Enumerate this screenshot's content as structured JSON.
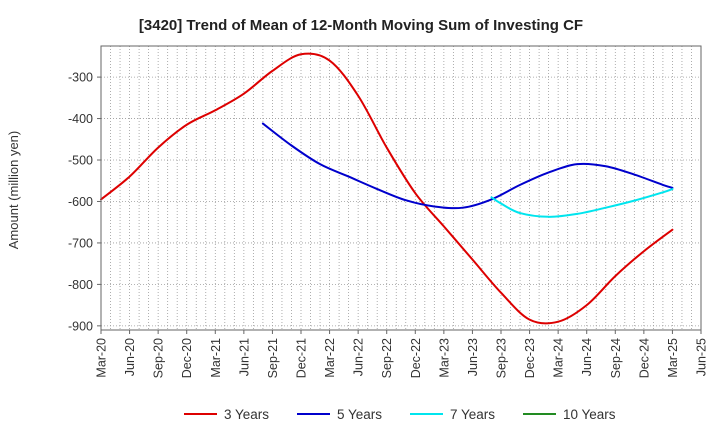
{
  "chart_data": {
    "type": "line",
    "title": "[3420]  Trend of Mean of 12-Month Moving Sum of Investing CF",
    "xlabel": "",
    "ylabel": "Amount (million yen)",
    "ylim": [
      -910,
      -225
    ],
    "yticks": [
      -900,
      -800,
      -700,
      -600,
      -500,
      -400,
      -300
    ],
    "ytick_labels": [
      "-900",
      "-800",
      "-700",
      "-600",
      "-500",
      "-400",
      "-300"
    ],
    "xlim": [
      0,
      63
    ],
    "xtick_positions": [
      0,
      3,
      6,
      9,
      12,
      15,
      18,
      21,
      24,
      27,
      30,
      33,
      36,
      39,
      42,
      45,
      48,
      51,
      54,
      57,
      60,
      63
    ],
    "xtick_labels": [
      "Mar-20",
      "Jun-20",
      "Sep-20",
      "Dec-20",
      "Mar-21",
      "Jun-21",
      "Sep-21",
      "Dec-21",
      "Mar-22",
      "Jun-22",
      "Sep-22",
      "Dec-22",
      "Mar-23",
      "Jun-23",
      "Sep-23",
      "Dec-23",
      "Mar-24",
      "Jun-24",
      "Sep-24",
      "Dec-24",
      "Mar-25",
      "Jun-25"
    ],
    "grid": true,
    "legend_position": "bottom",
    "series": [
      {
        "name": "3 Years",
        "color": "#dd0000",
        "x": [
          0,
          3,
          6,
          9,
          12,
          15,
          18,
          21,
          24,
          27,
          30,
          33,
          36,
          39,
          42,
          45,
          48,
          51,
          54,
          57,
          60
        ],
        "y": [
          -595,
          -540,
          -470,
          -415,
          -380,
          -340,
          -285,
          -245,
          -260,
          -345,
          -470,
          -580,
          -660,
          -740,
          -820,
          -885,
          -890,
          -850,
          -780,
          -720,
          -668
        ]
      },
      {
        "name": "5 Years",
        "color": "#0000cc",
        "x": [
          17,
          20,
          23,
          26,
          29,
          32,
          35,
          38,
          41,
          44,
          47,
          50,
          53,
          56,
          59,
          60
        ],
        "y": [
          -412,
          -465,
          -510,
          -540,
          -570,
          -597,
          -612,
          -615,
          -595,
          -560,
          -530,
          -510,
          -515,
          -535,
          -560,
          -567
        ]
      },
      {
        "name": "7 Years",
        "color": "#00e5ee",
        "x": [
          41,
          42,
          44,
          47,
          50,
          53,
          56,
          59,
          60
        ],
        "y": [
          -590,
          -605,
          -628,
          -637,
          -630,
          -615,
          -598,
          -578,
          -570
        ]
      },
      {
        "name": "10 Years",
        "color": "#228b22",
        "x": [],
        "y": []
      }
    ]
  }
}
